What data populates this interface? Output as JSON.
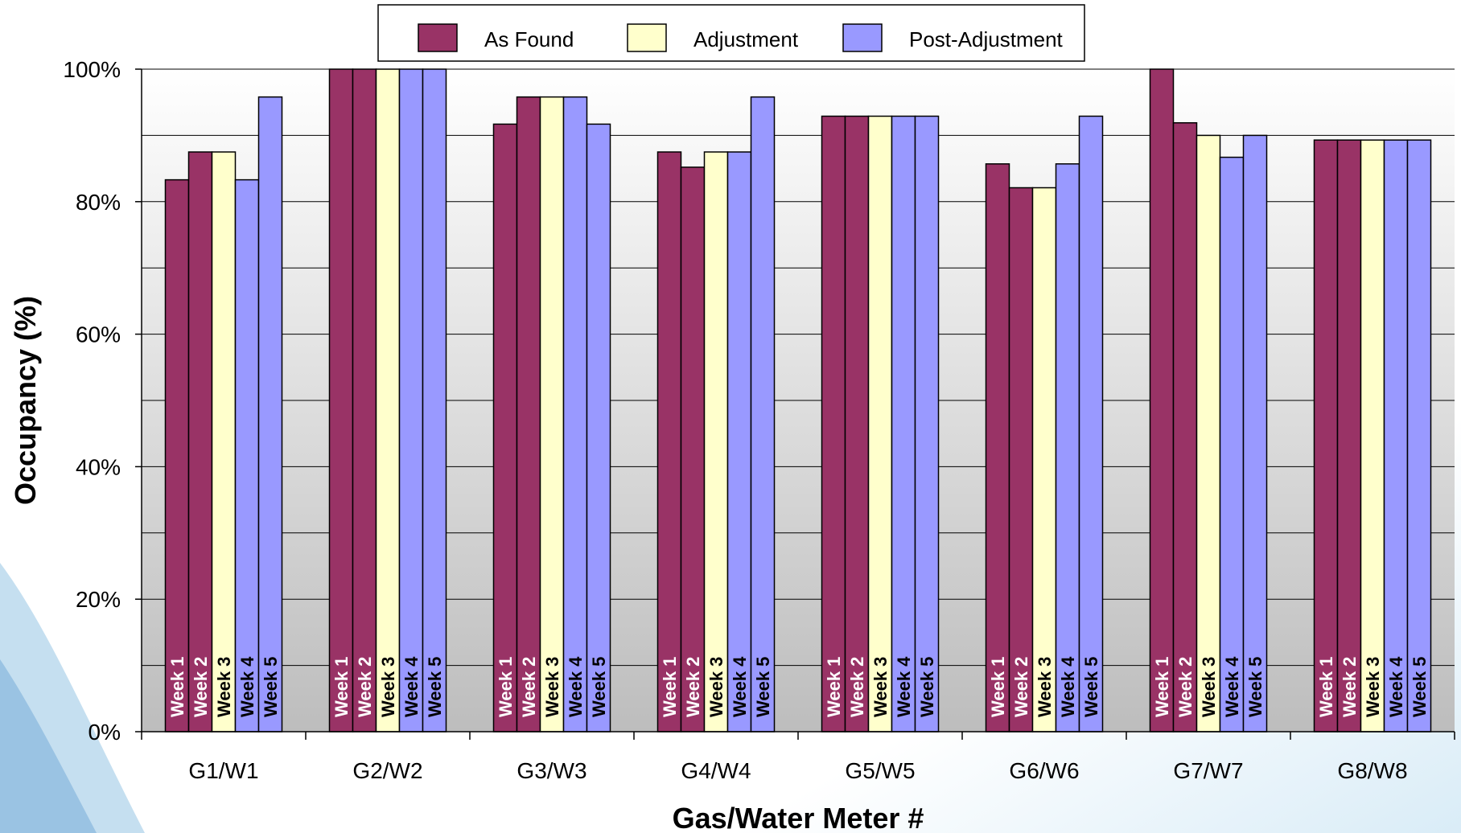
{
  "chart_data": {
    "type": "bar",
    "xlabel": "Gas/Water Meter #",
    "ylabel": "Occupancy (%)",
    "ylim": [
      0,
      100
    ],
    "yticks": [
      "0%",
      "20%",
      "40%",
      "60%",
      "80%",
      "100%"
    ],
    "categories": [
      "G1/W1",
      "G2/W2",
      "G3/W3",
      "G4/W4",
      "G5/W5",
      "G6/W6",
      "G7/W7",
      "G8/W8"
    ],
    "bar_labels": [
      "Week 1",
      "Week 2",
      "Week 3",
      "Week 4",
      "Week 5"
    ],
    "bar_series": [
      "As Found",
      "As Found",
      "Adjustment",
      "Post-Adjustment",
      "Post-Adjustment"
    ],
    "legend": [
      {
        "name": "As Found",
        "color": "#993366"
      },
      {
        "name": "Adjustment",
        "color": "#FFFFCC"
      },
      {
        "name": "Post-Adjustment",
        "color": "#9999FF"
      }
    ],
    "legend_placement": "top-center",
    "grid": true,
    "values": [
      [
        83.3,
        87.5,
        87.5,
        83.3,
        95.8
      ],
      [
        100,
        100,
        100,
        100,
        100
      ],
      [
        91.7,
        95.8,
        95.8,
        95.8,
        91.7
      ],
      [
        87.5,
        85.2,
        87.5,
        87.5,
        95.8
      ],
      [
        92.9,
        92.9,
        92.9,
        92.9,
        92.9
      ],
      [
        85.7,
        82.1,
        82.1,
        85.7,
        92.9
      ],
      [
        100,
        91.9,
        90.0,
        86.7,
        90.0
      ],
      [
        89.3,
        89.3,
        89.3,
        89.3,
        89.3
      ]
    ]
  }
}
